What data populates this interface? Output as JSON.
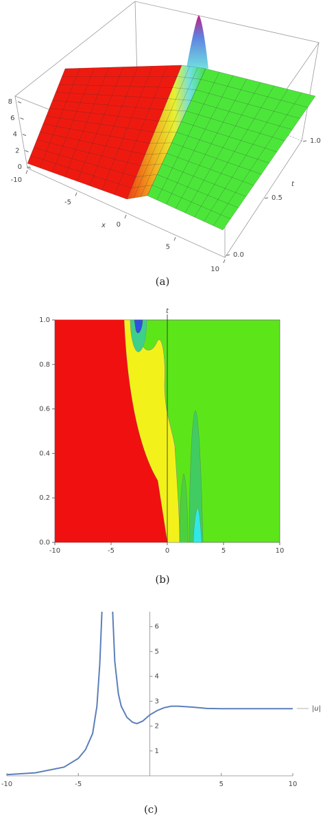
{
  "chart_data": [
    {
      "type": "surface",
      "caption": "(a)",
      "xlabel": "x",
      "ylabel": "t",
      "xlim": [
        -10,
        10
      ],
      "xticks": [
        -10,
        -5,
        0,
        5,
        10
      ],
      "ylim": [
        0,
        1
      ],
      "yticks": [
        {
          "value": 0,
          "label": "0.0"
        },
        0.5,
        {
          "value": 1,
          "label": "1.0"
        }
      ],
      "zlim": [
        0,
        8
      ],
      "zticks": [
        0,
        2,
        4,
        6,
        8
      ]
    },
    {
      "type": "contour",
      "caption": "(b)",
      "ylabel": "t",
      "xlim": [
        -10,
        10
      ],
      "xticks": [
        -10,
        -5,
        0,
        5,
        10
      ],
      "ylim": [
        0,
        1
      ],
      "yticks": [
        {
          "value": 0,
          "label": "0.0"
        },
        0.2,
        0.4,
        0.6,
        0.8,
        {
          "value": 1,
          "label": "1.0"
        }
      ]
    },
    {
      "type": "line",
      "caption": "(c)",
      "xlim": [
        -10,
        10
      ],
      "xticks": [
        -10,
        -5,
        5,
        10
      ],
      "ylim": [
        0,
        6.6
      ],
      "yticks": [
        1,
        2,
        3,
        4,
        5,
        6
      ],
      "x": [
        -10,
        -8,
        -6,
        -5,
        -4.5,
        -4,
        -3.7,
        -3.5,
        -3.35,
        -3,
        -2.6,
        -2.45,
        -2.2,
        -2,
        -1.6,
        -1.2,
        -0.9,
        -0.5,
        0,
        0.5,
        1,
        1.5,
        2,
        3,
        4,
        5,
        6,
        8,
        10
      ],
      "series": [
        {
          "name": "|u|",
          "color": "#5b7fb8",
          "values": [
            0.05,
            0.12,
            0.35,
            0.7,
            1.05,
            1.7,
            2.8,
            4.5,
            6.6,
            null,
            6.6,
            4.6,
            3.3,
            2.8,
            2.35,
            2.15,
            2.1,
            2.2,
            2.45,
            2.62,
            2.74,
            2.8,
            2.8,
            2.76,
            2.71,
            2.7,
            2.7,
            2.7,
            2.7
          ]
        }
      ]
    }
  ]
}
